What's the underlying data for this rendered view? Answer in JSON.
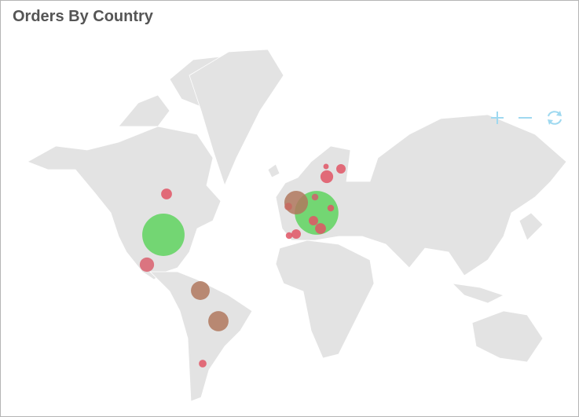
{
  "title": "Orders By Country",
  "bubbles": {
    "values": [
      122,
      130,
      38,
      24,
      28,
      14,
      8,
      11,
      6,
      2,
      3,
      3,
      6,
      8,
      6,
      3,
      4,
      4
    ],
    "colors": [
      "#5fd35f",
      "#5fd35f",
      "#b0785e",
      "#b0785e",
      "#b0785e",
      "#d9606e",
      "#e05565",
      "#e05565",
      "#e05565",
      "#e05565",
      "#e05565",
      "#d0606c",
      "#e05565",
      "#e05565",
      "#e05565",
      "#e05565",
      "#c76a60",
      "#e05565"
    ]
  }
}
